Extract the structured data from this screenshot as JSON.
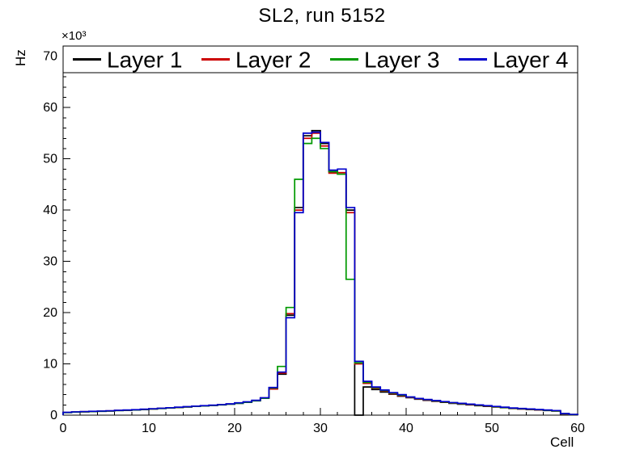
{
  "title": "SL2, run 5152",
  "axes": {
    "x": {
      "title": "Cell",
      "min": 0,
      "max": 60,
      "major_ticks": [
        0,
        10,
        20,
        30,
        40,
        50,
        60
      ],
      "minor_step": 2
    },
    "y": {
      "title": "Hz",
      "exponent_label": "×10³",
      "min": 0,
      "max": 72,
      "major_ticks": [
        0,
        10,
        20,
        30,
        40,
        50,
        60,
        70
      ],
      "minor_step": 2
    }
  },
  "legend": {
    "entries": [
      {
        "label": "Layer 1",
        "color": "#000000"
      },
      {
        "label": "Layer 2",
        "color": "#cc0000"
      },
      {
        "label": "Layer 3",
        "color": "#009900"
      },
      {
        "label": "Layer 4",
        "color": "#0000cc"
      }
    ]
  },
  "chart_data": {
    "type": "line",
    "style": "step-histogram",
    "title": "SL2, run 5152",
    "xlabel": "Cell",
    "ylabel": "Hz",
    "values_unit": "×10³ Hz",
    "x_start": 0,
    "bin_width": 1,
    "bin_count": 60,
    "xlim": [
      0,
      60
    ],
    "ylim": [
      0,
      72
    ],
    "grid": false,
    "legend_position": "top-inside-horizontal",
    "series": [
      {
        "name": "Layer 1",
        "color": "#000000",
        "values": [
          0.5,
          0.6,
          0.65,
          0.7,
          0.75,
          0.8,
          0.9,
          0.95,
          1.0,
          1.1,
          1.2,
          1.3,
          1.4,
          1.5,
          1.6,
          1.7,
          1.8,
          1.9,
          2.0,
          2.15,
          2.3,
          2.5,
          2.8,
          3.3,
          5.2,
          8.0,
          19.5,
          40.5,
          54.5,
          55.5,
          53.0,
          47.5,
          47.0,
          40.0,
          0.0,
          5.5,
          5.0,
          4.5,
          4.1,
          3.7,
          3.4,
          3.1,
          2.9,
          2.7,
          2.5,
          2.3,
          2.15,
          2.0,
          1.85,
          1.7,
          1.6,
          1.45,
          1.3,
          1.2,
          1.1,
          1.0,
          0.9,
          0.8,
          0.25,
          0.1
        ]
      },
      {
        "name": "Layer 2",
        "color": "#cc0000",
        "values": [
          0.52,
          0.62,
          0.67,
          0.72,
          0.78,
          0.83,
          0.92,
          0.97,
          1.03,
          1.13,
          1.22,
          1.32,
          1.42,
          1.52,
          1.62,
          1.72,
          1.82,
          1.92,
          2.03,
          2.18,
          2.35,
          2.55,
          2.85,
          3.35,
          5.1,
          8.2,
          19.8,
          40.0,
          54.0,
          55.0,
          52.5,
          47.2,
          47.3,
          39.5,
          10.0,
          6.2,
          5.3,
          4.7,
          4.2,
          3.8,
          3.45,
          3.15,
          2.95,
          2.75,
          2.55,
          2.35,
          2.2,
          2.05,
          1.9,
          1.75,
          1.62,
          1.48,
          1.33,
          1.22,
          1.12,
          1.02,
          0.92,
          0.82,
          0.27,
          0.12
        ]
      },
      {
        "name": "Layer 3",
        "color": "#009900",
        "values": [
          0.5,
          0.6,
          0.66,
          0.71,
          0.76,
          0.82,
          0.9,
          0.96,
          1.02,
          1.12,
          1.21,
          1.31,
          1.41,
          1.51,
          1.61,
          1.71,
          1.81,
          1.91,
          2.02,
          2.16,
          2.32,
          2.52,
          2.82,
          3.3,
          5.3,
          9.5,
          21.0,
          46.0,
          53.0,
          54.0,
          52.0,
          47.5,
          47.0,
          26.5,
          10.2,
          6.4,
          5.4,
          4.8,
          4.3,
          3.9,
          3.5,
          3.2,
          3.0,
          2.8,
          2.6,
          2.4,
          2.25,
          2.1,
          1.95,
          1.8,
          1.65,
          1.5,
          1.35,
          1.25,
          1.15,
          1.05,
          0.95,
          0.85,
          0.3,
          0.12
        ]
      },
      {
        "name": "Layer 4",
        "color": "#0000cc",
        "values": [
          0.55,
          0.64,
          0.7,
          0.75,
          0.8,
          0.86,
          0.94,
          1.0,
          1.06,
          1.16,
          1.25,
          1.35,
          1.45,
          1.55,
          1.65,
          1.75,
          1.85,
          1.95,
          2.06,
          2.2,
          2.4,
          2.6,
          2.9,
          3.4,
          5.4,
          8.4,
          19.0,
          39.5,
          55.0,
          55.2,
          53.2,
          47.8,
          48.0,
          40.5,
          10.5,
          6.6,
          5.5,
          4.9,
          4.4,
          4.0,
          3.55,
          3.25,
          3.05,
          2.85,
          2.65,
          2.45,
          2.3,
          2.15,
          2.0,
          1.85,
          1.7,
          1.55,
          1.4,
          1.3,
          1.2,
          1.1,
          1.0,
          0.9,
          0.32,
          0.15
        ]
      }
    ]
  }
}
